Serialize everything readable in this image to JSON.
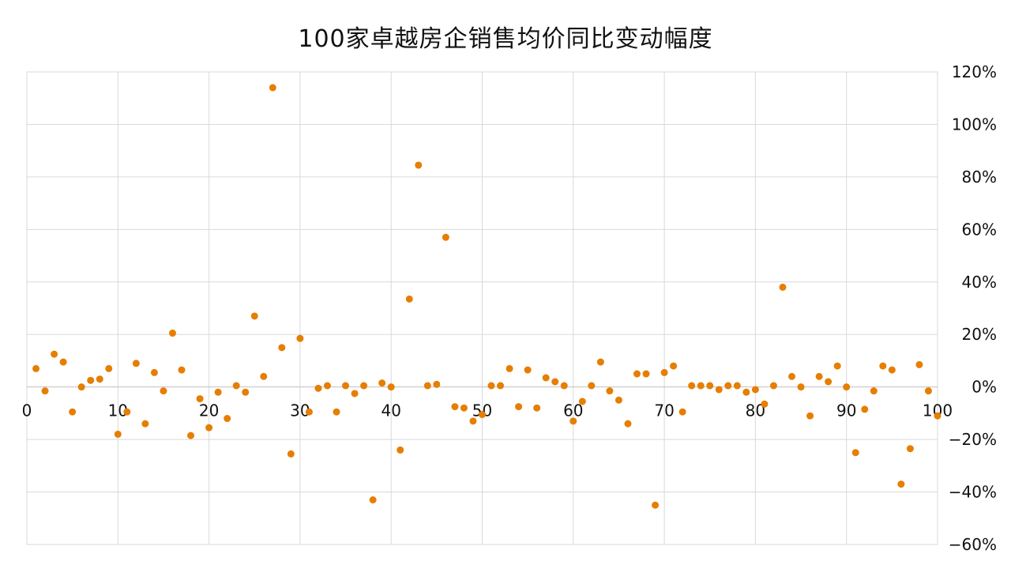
{
  "chart_data": {
    "type": "scatter",
    "title": "100家卓越房企销售均价同比变动幅度",
    "xlim": [
      0,
      100
    ],
    "ylim": [
      -0.6,
      1.2
    ],
    "x_ticks": [
      0,
      10,
      20,
      30,
      40,
      50,
      60,
      70,
      80,
      90,
      100
    ],
    "x_tick_labels": [
      "0",
      "10",
      "20",
      "30",
      "40",
      "50",
      "60",
      "70",
      "80",
      "90",
      "100"
    ],
    "y_ticks": [
      -0.6,
      -0.4,
      -0.2,
      0,
      0.2,
      0.4,
      0.6,
      0.8,
      1.0,
      1.2
    ],
    "y_tick_labels": [
      "−60%",
      "−40%",
      "−20%",
      "0%",
      "20%",
      "40%",
      "60%",
      "80%",
      "100%",
      "120%"
    ],
    "y_axis_position": "right",
    "grid": true,
    "marker_color": "#E67E00",
    "series": [
      {
        "x": [
          1,
          2,
          3,
          4,
          5,
          6,
          7,
          8,
          9,
          10,
          11,
          12,
          13,
          14,
          15,
          16,
          17,
          18,
          19,
          20,
          21,
          22,
          23,
          24,
          25,
          26,
          27,
          28,
          29,
          30,
          31,
          32,
          33,
          34,
          35,
          36,
          37,
          38,
          39,
          40,
          41,
          42,
          43,
          44,
          45,
          46,
          47,
          48,
          49,
          50,
          51,
          52,
          53,
          54,
          55,
          56,
          57,
          58,
          59,
          60,
          61,
          62,
          63,
          64,
          65,
          66,
          67,
          68,
          69,
          70,
          71,
          72,
          73,
          74,
          75,
          76,
          77,
          78,
          79,
          80,
          81,
          82,
          83,
          84,
          85,
          86,
          87,
          88,
          89,
          90,
          91,
          92,
          93,
          94,
          95,
          96,
          97,
          98,
          99,
          100
        ],
        "y": [
          0.07,
          -0.015,
          0.125,
          0.095,
          -0.095,
          0.0,
          0.025,
          0.03,
          0.07,
          -0.18,
          -0.095,
          0.09,
          -0.14,
          0.055,
          -0.015,
          0.205,
          0.065,
          -0.185,
          -0.045,
          -0.155,
          -0.02,
          -0.12,
          0.005,
          -0.02,
          0.27,
          0.04,
          1.14,
          0.15,
          -0.255,
          0.185,
          -0.095,
          -0.005,
          0.005,
          -0.095,
          0.005,
          -0.025,
          0.005,
          -0.43,
          0.015,
          0.0,
          -0.24,
          0.335,
          0.845,
          0.005,
          0.01,
          0.57,
          -0.075,
          -0.08,
          -0.13,
          -0.105,
          0.005,
          0.005,
          0.07,
          -0.075,
          0.065,
          -0.08,
          0.035,
          0.02,
          0.005,
          -0.13,
          -0.055,
          0.005,
          0.095,
          -0.015,
          -0.05,
          -0.14,
          0.05,
          0.05,
          -0.45,
          0.055,
          0.08,
          -0.095,
          0.005,
          0.005,
          0.005,
          -0.01,
          0.005,
          0.005,
          -0.02,
          -0.01,
          -0.065,
          0.005,
          0.38,
          0.04,
          0.0,
          -0.11,
          0.04,
          0.02,
          0.08,
          0.0,
          -0.25,
          -0.085,
          -0.015,
          0.08,
          0.065,
          -0.37,
          -0.235,
          0.085,
          -0.015,
          -0.11
        ]
      }
    ]
  }
}
